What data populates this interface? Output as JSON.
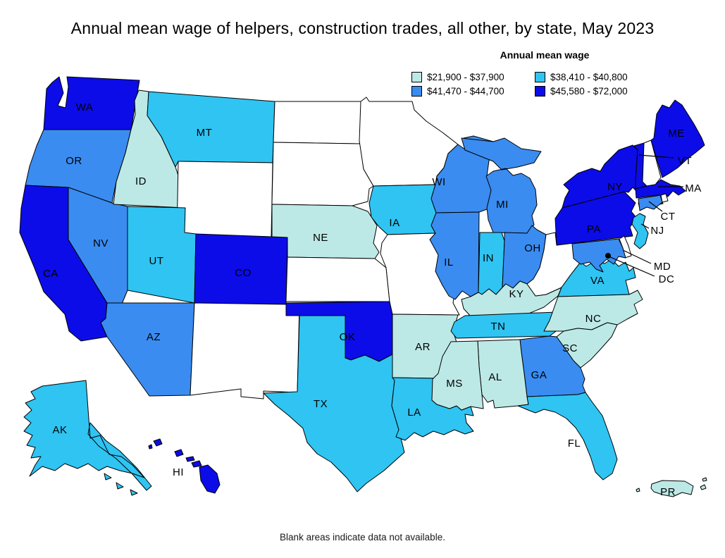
{
  "legend": {
    "title": "Annual mean wage"
  },
  "chart_data": {
    "type": "choropleth",
    "region": "United States, by state (incl. AK, HI, PR, DC)",
    "title": "Annual mean wage of helpers, construction trades, all other, by state, May 2023",
    "unit": "USD per year",
    "classes": [
      {
        "key": "c1",
        "range": "$21,900 - $37,900",
        "min": 21900,
        "max": 37900,
        "color": "#bce9e6"
      },
      {
        "key": "c2",
        "range": "$38,410 - $40,800",
        "min": 38410,
        "max": 40800,
        "color": "#2fc4f2"
      },
      {
        "key": "c3",
        "range": "$41,470 - $44,700",
        "min": 41470,
        "max": 44700,
        "color": "#3a8cf0"
      },
      {
        "key": "c4",
        "range": "$45,580 - $72,000",
        "min": 45580,
        "max": 72000,
        "color": "#0c0ce8"
      }
    ],
    "no_data": {
      "label": "Blank areas indicate data not available.",
      "color": "#ffffff",
      "states": [
        "WY",
        "NM",
        "ND",
        "SD",
        "KS",
        "MN",
        "MO",
        "WV",
        "NH",
        "RI",
        "DE"
      ]
    },
    "marker_color": "#000000",
    "states": [
      {
        "id": "WA",
        "label": "WA",
        "class": "c4"
      },
      {
        "id": "OR",
        "label": "OR",
        "class": "c3"
      },
      {
        "id": "CA",
        "label": "CA",
        "class": "c4"
      },
      {
        "id": "NV",
        "label": "NV",
        "class": "c3"
      },
      {
        "id": "ID",
        "label": "ID",
        "class": "c1"
      },
      {
        "id": "MT",
        "label": "MT",
        "class": "c2"
      },
      {
        "id": "WY",
        "label": "",
        "class": "no_data"
      },
      {
        "id": "UT",
        "label": "UT",
        "class": "c2"
      },
      {
        "id": "CO",
        "label": "CO",
        "class": "c4"
      },
      {
        "id": "AZ",
        "label": "AZ",
        "class": "c3"
      },
      {
        "id": "NM",
        "label": "",
        "class": "no_data"
      },
      {
        "id": "ND",
        "label": "",
        "class": "no_data"
      },
      {
        "id": "SD",
        "label": "",
        "class": "no_data"
      },
      {
        "id": "NE",
        "label": "NE",
        "class": "c1"
      },
      {
        "id": "KS",
        "label": "",
        "class": "no_data"
      },
      {
        "id": "OK",
        "label": "OK",
        "class": "c4"
      },
      {
        "id": "TX",
        "label": "TX",
        "class": "c2"
      },
      {
        "id": "MN",
        "label": "",
        "class": "no_data"
      },
      {
        "id": "IA",
        "label": "IA",
        "class": "c2"
      },
      {
        "id": "MO",
        "label": "",
        "class": "no_data"
      },
      {
        "id": "AR",
        "label": "AR",
        "class": "c1"
      },
      {
        "id": "LA",
        "label": "LA",
        "class": "c2"
      },
      {
        "id": "WI",
        "label": "WI",
        "class": "c3"
      },
      {
        "id": "IL",
        "label": "IL",
        "class": "c3"
      },
      {
        "id": "MI",
        "label": "MI",
        "class": "c3"
      },
      {
        "id": "IN",
        "label": "IN",
        "class": "c2"
      },
      {
        "id": "OH",
        "label": "OH",
        "class": "c3"
      },
      {
        "id": "KY",
        "label": "KY",
        "class": "c1"
      },
      {
        "id": "TN",
        "label": "TN",
        "class": "c2"
      },
      {
        "id": "WV",
        "label": "",
        "class": "no_data"
      },
      {
        "id": "VA",
        "label": "VA",
        "class": "c2"
      },
      {
        "id": "NC",
        "label": "NC",
        "class": "c1"
      },
      {
        "id": "SC",
        "label": "SC",
        "class": "c1"
      },
      {
        "id": "GA",
        "label": "GA",
        "class": "c3"
      },
      {
        "id": "AL",
        "label": "AL",
        "class": "c1"
      },
      {
        "id": "MS",
        "label": "MS",
        "class": "c1"
      },
      {
        "id": "FL",
        "label": "FL",
        "class": "c2"
      },
      {
        "id": "PA",
        "label": "PA",
        "class": "c4"
      },
      {
        "id": "NY",
        "label": "NY",
        "class": "c4"
      },
      {
        "id": "VT",
        "label": "VT",
        "class": "c4"
      },
      {
        "id": "NH",
        "label": "",
        "class": "no_data"
      },
      {
        "id": "ME",
        "label": "ME",
        "class": "c4"
      },
      {
        "id": "MA",
        "label": "MA",
        "class": "c4"
      },
      {
        "id": "RI",
        "label": "",
        "class": "no_data"
      },
      {
        "id": "CT",
        "label": "CT",
        "class": "c3"
      },
      {
        "id": "NJ",
        "label": "NJ",
        "class": "c2"
      },
      {
        "id": "DE",
        "label": "",
        "class": "no_data"
      },
      {
        "id": "MD",
        "label": "MD",
        "class": "c3"
      },
      {
        "id": "DC",
        "label": "DC",
        "class": "marker"
      },
      {
        "id": "AK",
        "label": "AK",
        "class": "c2"
      },
      {
        "id": "HI",
        "label": "HI",
        "class": "c4"
      },
      {
        "id": "PR",
        "label": "PR",
        "class": "c1"
      }
    ]
  }
}
